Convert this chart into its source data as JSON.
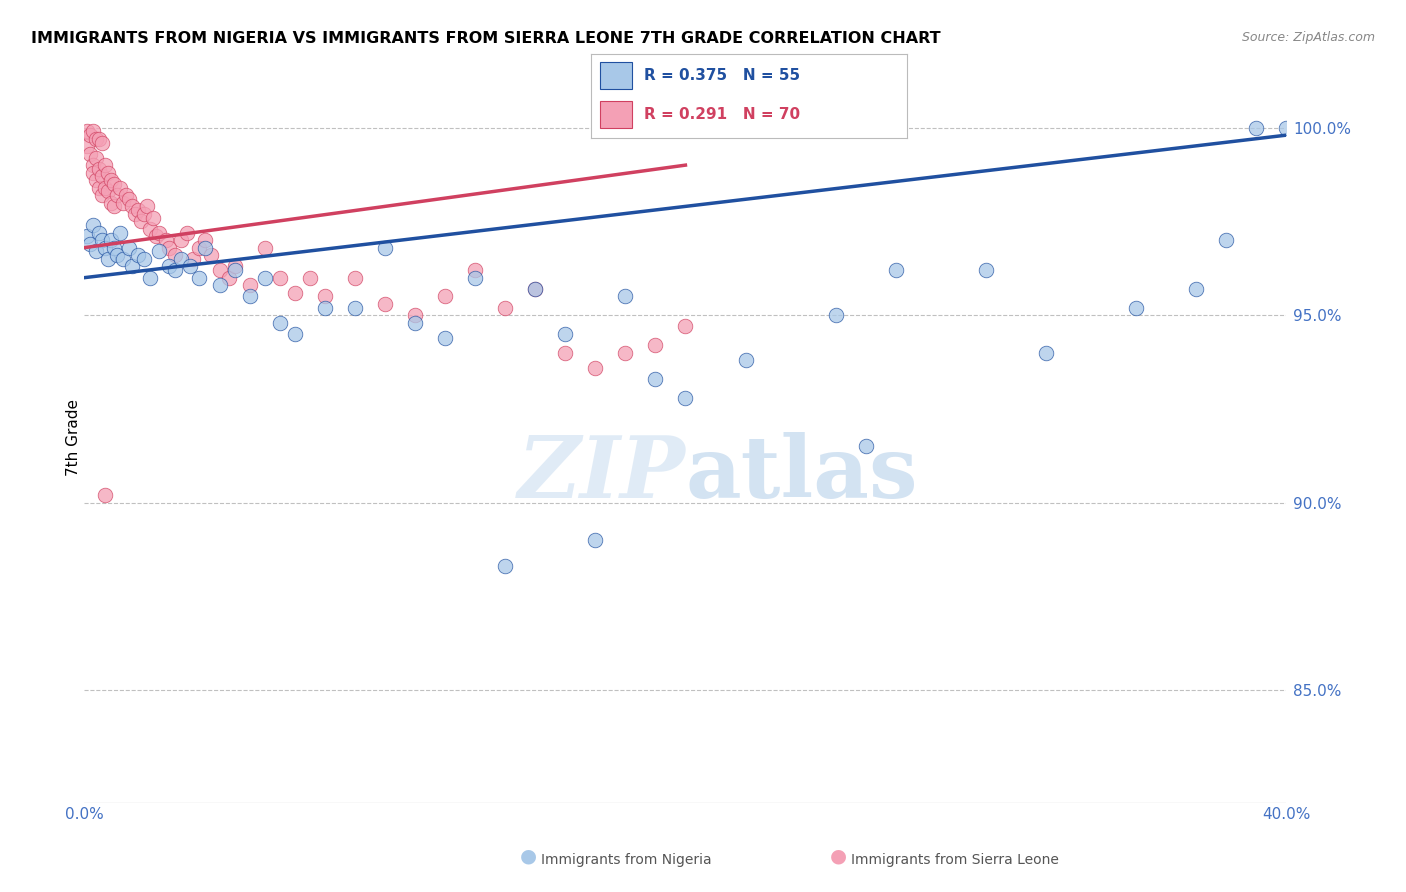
{
  "title": "IMMIGRANTS FROM NIGERIA VS IMMIGRANTS FROM SIERRA LEONE 7TH GRADE CORRELATION CHART",
  "source": "Source: ZipAtlas.com",
  "ylabel": "7th Grade",
  "legend_label_blue": "Immigrants from Nigeria",
  "legend_label_pink": "Immigrants from Sierra Leone",
  "legend_R_blue": "R = 0.375",
  "legend_N_blue": "N = 55",
  "legend_R_pink": "R = 0.291",
  "legend_N_pink": "N = 70",
  "x_min": 0.0,
  "x_max": 0.4,
  "y_min": 0.82,
  "y_max": 1.015,
  "y_ticks": [
    0.85,
    0.9,
    0.95,
    1.0
  ],
  "y_tick_labels": [
    "85.0%",
    "90.0%",
    "95.0%",
    "100.0%"
  ],
  "x_ticks": [
    0.0,
    0.1,
    0.2,
    0.3,
    0.4
  ],
  "x_tick_labels": [
    "0.0%",
    "",
    "",
    "",
    "40.0%"
  ],
  "color_blue": "#A8C8E8",
  "color_pink": "#F4A0B5",
  "color_blue_line": "#2050A0",
  "color_pink_line": "#D04060",
  "blue_x": [
    0.001,
    0.002,
    0.003,
    0.004,
    0.005,
    0.006,
    0.007,
    0.008,
    0.009,
    0.01,
    0.011,
    0.012,
    0.013,
    0.015,
    0.016,
    0.018,
    0.02,
    0.022,
    0.025,
    0.028,
    0.03,
    0.032,
    0.035,
    0.038,
    0.04,
    0.045,
    0.05,
    0.055,
    0.06,
    0.065,
    0.07,
    0.08,
    0.09,
    0.1,
    0.11,
    0.12,
    0.13,
    0.15,
    0.16,
    0.17,
    0.18,
    0.19,
    0.2,
    0.22,
    0.25,
    0.27,
    0.3,
    0.32,
    0.35,
    0.37,
    0.38,
    0.39,
    0.4,
    0.14,
    0.26
  ],
  "blue_y": [
    0.971,
    0.969,
    0.974,
    0.967,
    0.972,
    0.97,
    0.968,
    0.965,
    0.97,
    0.968,
    0.966,
    0.972,
    0.965,
    0.968,
    0.963,
    0.966,
    0.965,
    0.96,
    0.967,
    0.963,
    0.962,
    0.965,
    0.963,
    0.96,
    0.968,
    0.958,
    0.962,
    0.955,
    0.96,
    0.948,
    0.945,
    0.952,
    0.952,
    0.968,
    0.948,
    0.944,
    0.96,
    0.957,
    0.945,
    0.89,
    0.955,
    0.933,
    0.928,
    0.938,
    0.95,
    0.962,
    0.962,
    0.94,
    0.952,
    0.957,
    0.97,
    1.0,
    1.0,
    0.883,
    0.915
  ],
  "pink_x": [
    0.001,
    0.002,
    0.003,
    0.003,
    0.004,
    0.004,
    0.005,
    0.005,
    0.006,
    0.006,
    0.007,
    0.007,
    0.008,
    0.008,
    0.009,
    0.009,
    0.01,
    0.01,
    0.011,
    0.012,
    0.013,
    0.014,
    0.015,
    0.016,
    0.017,
    0.018,
    0.019,
    0.02,
    0.021,
    0.022,
    0.023,
    0.024,
    0.025,
    0.027,
    0.028,
    0.03,
    0.032,
    0.034,
    0.036,
    0.038,
    0.04,
    0.042,
    0.045,
    0.048,
    0.05,
    0.055,
    0.06,
    0.065,
    0.07,
    0.075,
    0.08,
    0.09,
    0.1,
    0.11,
    0.12,
    0.13,
    0.14,
    0.15,
    0.16,
    0.17,
    0.18,
    0.19,
    0.2,
    0.001,
    0.002,
    0.003,
    0.004,
    0.005,
    0.006,
    0.007
  ],
  "pink_y": [
    0.995,
    0.993,
    0.99,
    0.988,
    0.992,
    0.986,
    0.989,
    0.984,
    0.987,
    0.982,
    0.99,
    0.984,
    0.988,
    0.983,
    0.986,
    0.98,
    0.985,
    0.979,
    0.982,
    0.984,
    0.98,
    0.982,
    0.981,
    0.979,
    0.977,
    0.978,
    0.975,
    0.977,
    0.979,
    0.973,
    0.976,
    0.971,
    0.972,
    0.97,
    0.968,
    0.966,
    0.97,
    0.972,
    0.965,
    0.968,
    0.97,
    0.966,
    0.962,
    0.96,
    0.963,
    0.958,
    0.968,
    0.96,
    0.956,
    0.96,
    0.955,
    0.96,
    0.953,
    0.95,
    0.955,
    0.962,
    0.952,
    0.957,
    0.94,
    0.936,
    0.94,
    0.942,
    0.947,
    0.999,
    0.998,
    0.999,
    0.997,
    0.997,
    0.996,
    0.902
  ],
  "trendline_blue_x0": 0.0,
  "trendline_blue_x1": 0.4,
  "trendline_blue_y0": 0.96,
  "trendline_blue_y1": 0.998,
  "trendline_pink_x0": 0.0,
  "trendline_pink_x1": 0.2,
  "trendline_pink_y0": 0.968,
  "trendline_pink_y1": 0.99
}
